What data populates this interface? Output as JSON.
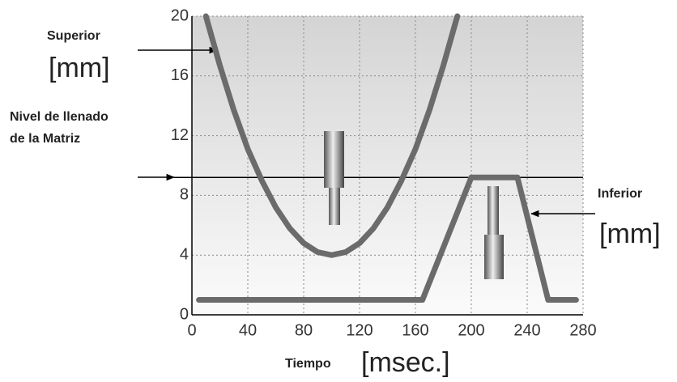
{
  "chart_data": {
    "type": "line",
    "x_label": "Tiempo",
    "x_unit": "[msec.]",
    "xlim": [
      0,
      280
    ],
    "xticks": [
      0,
      40,
      80,
      120,
      160,
      200,
      240,
      280
    ],
    "ylim": [
      0,
      20
    ],
    "yticks": [
      0,
      4,
      8,
      12,
      16,
      20
    ],
    "grid": true,
    "series": [
      {
        "name": "Superior",
        "unit": "[mm]",
        "color": "#6b6b6b",
        "x": [
          10,
          20,
          30,
          40,
          50,
          60,
          70,
          80,
          90,
          100,
          110,
          120,
          130,
          140,
          150,
          160,
          170,
          180,
          190
        ],
        "values": [
          20,
          16.7,
          13.7,
          11.1,
          9.0,
          7.2,
          5.8,
          4.8,
          4.2,
          4,
          4.2,
          4.8,
          5.8,
          7.2,
          9.0,
          11.1,
          13.7,
          16.7,
          20
        ]
      },
      {
        "name": "Inferior",
        "unit": "[mm]",
        "color": "#6b6b6b",
        "x": [
          5,
          165,
          200,
          233,
          255,
          275
        ],
        "values": [
          1,
          1,
          9.2,
          9.2,
          1,
          1
        ]
      }
    ],
    "reference_line": {
      "label": [
        "Nivel de llenado",
        "de la Matriz"
      ],
      "value": 9.2,
      "color": "#000000"
    }
  }
}
